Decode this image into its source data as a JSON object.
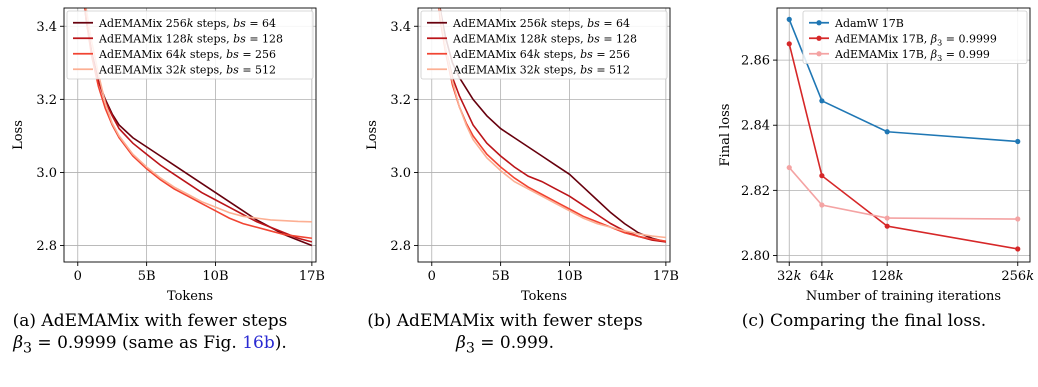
{
  "chart_data": [
    {
      "type": "line",
      "id": "a",
      "title": "",
      "xlabel": "Tokens",
      "ylabel": "Loss",
      "xlim": [
        -1.0,
        17.3
      ],
      "ylim": [
        2.755,
        3.45
      ],
      "x_ticks": [
        0,
        5,
        10,
        17
      ],
      "x_tick_labels": [
        "0",
        "5B",
        "10B",
        "17B"
      ],
      "y_ticks": [
        2.8,
        3.0,
        3.2,
        3.4
      ],
      "y_tick_labels": [
        "2.8",
        "3.0",
        "3.2",
        "3.4"
      ],
      "grid": true,
      "legend_position": "top-right",
      "series": [
        {
          "name": "AdEMAMix 256k steps, bs = 64",
          "color": "#67000d",
          "x": [
            0.3,
            0.6,
            1.0,
            1.5,
            2.0,
            2.5,
            3.0,
            4.0,
            5.0,
            6.0,
            7.0,
            8.0,
            9.0,
            10.0,
            11.0,
            12.0,
            13.0,
            14.0,
            15.0,
            16.0,
            17.0
          ],
          "y": [
            3.55,
            3.42,
            3.33,
            3.25,
            3.2,
            3.16,
            3.13,
            3.095,
            3.07,
            3.045,
            3.02,
            2.995,
            2.97,
            2.945,
            2.92,
            2.895,
            2.87,
            2.85,
            2.83,
            2.815,
            2.8
          ]
        },
        {
          "name": "AdEMAMix 128k steps, bs = 128",
          "color": "#bb1419",
          "x": [
            0.3,
            0.6,
            1.0,
            1.5,
            2.0,
            2.5,
            3.0,
            4.0,
            5.0,
            6.0,
            7.0,
            8.0,
            9.0,
            10.0,
            11.0,
            12.0,
            13.0,
            14.0,
            15.0,
            16.0,
            17.0
          ],
          "y": [
            3.55,
            3.42,
            3.33,
            3.25,
            3.195,
            3.155,
            3.12,
            3.08,
            3.05,
            3.02,
            2.995,
            2.97,
            2.945,
            2.925,
            2.905,
            2.885,
            2.865,
            2.85,
            2.835,
            2.82,
            2.81
          ]
        },
        {
          "name": "AdEMAMix 64k steps, bs = 256",
          "color": "#f14432",
          "x": [
            0.3,
            0.6,
            1.0,
            1.5,
            2.0,
            2.5,
            3.0,
            4.0,
            5.0,
            6.0,
            7.0,
            8.0,
            9.0,
            10.0,
            11.0,
            12.0,
            13.0,
            14.0,
            15.0,
            16.0,
            17.0
          ],
          "y": [
            3.55,
            3.42,
            3.32,
            3.235,
            3.175,
            3.13,
            3.095,
            3.045,
            3.01,
            2.98,
            2.955,
            2.935,
            2.915,
            2.895,
            2.875,
            2.86,
            2.85,
            2.84,
            2.83,
            2.825,
            2.82
          ]
        },
        {
          "name": "AdEMAMix 32k steps, bs = 512",
          "color": "#fcaf93",
          "x": [
            0.3,
            0.6,
            1.0,
            1.5,
            2.0,
            2.5,
            3.0,
            4.0,
            5.0,
            6.0,
            7.0,
            8.0,
            9.0,
            10.0,
            11.0,
            12.0,
            13.0,
            14.0,
            15.0,
            16.0,
            17.0
          ],
          "y": [
            3.55,
            3.45,
            3.36,
            3.27,
            3.19,
            3.135,
            3.1,
            3.05,
            3.015,
            2.985,
            2.96,
            2.94,
            2.92,
            2.905,
            2.89,
            2.88,
            2.875,
            2.87,
            2.868,
            2.866,
            2.865
          ]
        }
      ]
    },
    {
      "type": "line",
      "id": "b",
      "title": "",
      "xlabel": "Tokens",
      "ylabel": "Loss",
      "xlim": [
        -1.0,
        17.3
      ],
      "ylim": [
        2.755,
        3.45
      ],
      "x_ticks": [
        0,
        5,
        10,
        17
      ],
      "x_tick_labels": [
        "0",
        "5B",
        "10B",
        "17B"
      ],
      "y_ticks": [
        2.8,
        3.0,
        3.2,
        3.4
      ],
      "y_tick_labels": [
        "2.8",
        "3.0",
        "3.2",
        "3.4"
      ],
      "grid": true,
      "legend_position": "top-right",
      "series": [
        {
          "name": "AdEMAMix 256k steps, bs = 64",
          "color": "#67000d",
          "x": [
            0.3,
            0.6,
            1.0,
            1.5,
            2.0,
            2.5,
            3.0,
            4.0,
            5.0,
            6.0,
            7.0,
            8.0,
            9.0,
            10.0,
            11.0,
            12.0,
            13.0,
            14.0,
            15.0,
            16.0,
            17.0
          ],
          "y": [
            3.55,
            3.45,
            3.37,
            3.3,
            3.26,
            3.23,
            3.2,
            3.155,
            3.12,
            3.095,
            3.07,
            3.045,
            3.02,
            2.995,
            2.96,
            2.925,
            2.89,
            2.86,
            2.835,
            2.82,
            2.81
          ]
        },
        {
          "name": "AdEMAMix 128k steps, bs = 128",
          "color": "#bb1419",
          "x": [
            0.3,
            0.6,
            1.0,
            1.5,
            2.0,
            2.5,
            3.0,
            4.0,
            5.0,
            6.0,
            7.0,
            8.0,
            9.0,
            10.0,
            11.0,
            12.0,
            13.0,
            14.0,
            15.0,
            16.0,
            17.0
          ],
          "y": [
            3.55,
            3.43,
            3.34,
            3.26,
            3.21,
            3.17,
            3.13,
            3.08,
            3.045,
            3.015,
            2.99,
            2.975,
            2.955,
            2.935,
            2.91,
            2.885,
            2.86,
            2.84,
            2.825,
            2.815,
            2.81
          ]
        },
        {
          "name": "AdEMAMix 64k steps, bs = 256",
          "color": "#f14432",
          "x": [
            0.3,
            0.6,
            1.0,
            1.5,
            2.0,
            2.5,
            3.0,
            4.0,
            5.0,
            6.0,
            7.0,
            8.0,
            9.0,
            10.0,
            11.0,
            12.0,
            13.0,
            14.0,
            15.0,
            16.0,
            17.0
          ],
          "y": [
            3.55,
            3.42,
            3.33,
            3.24,
            3.18,
            3.135,
            3.1,
            3.05,
            3.015,
            2.985,
            2.96,
            2.94,
            2.92,
            2.9,
            2.88,
            2.865,
            2.85,
            2.835,
            2.825,
            2.818,
            2.812
          ]
        },
        {
          "name": "AdEMAMix 32k steps, bs = 512",
          "color": "#fcaf93",
          "x": [
            0.3,
            0.6,
            1.0,
            1.5,
            2.0,
            2.5,
            3.0,
            4.0,
            5.0,
            6.0,
            7.0,
            8.0,
            9.0,
            10.0,
            11.0,
            12.0,
            13.0,
            14.0,
            15.0,
            16.0,
            17.0
          ],
          "y": [
            3.55,
            3.44,
            3.34,
            3.25,
            3.18,
            3.13,
            3.09,
            3.04,
            3.005,
            2.975,
            2.955,
            2.935,
            2.915,
            2.895,
            2.875,
            2.86,
            2.85,
            2.84,
            2.832,
            2.826,
            2.822
          ]
        }
      ]
    },
    {
      "type": "line",
      "id": "c",
      "title": "",
      "xlabel": "Number of training iterations",
      "ylabel": "Final loss",
      "xlim": [
        20,
        268
      ],
      "ylim": [
        2.798,
        2.876
      ],
      "x_ticks": [
        32,
        64,
        128,
        256
      ],
      "x_tick_labels": [
        "32k",
        "64k",
        "128k",
        "256k"
      ],
      "y_ticks": [
        2.8,
        2.82,
        2.84,
        2.86
      ],
      "y_tick_labels": [
        "2.80",
        "2.82",
        "2.84",
        "2.86"
      ],
      "grid": true,
      "legend_position": "top-right",
      "series": [
        {
          "name": "AdamW 17B",
          "color": "#1f77b4",
          "x": [
            32,
            64,
            128,
            256
          ],
          "y": [
            2.8725,
            2.8475,
            2.838,
            2.835
          ]
        },
        {
          "name": "AdEMAMix 17B, β3 = 0.9999",
          "color": "#d62728",
          "x": [
            32,
            64,
            128,
            256
          ],
          "y": [
            2.865,
            2.8245,
            2.809,
            2.802
          ]
        },
        {
          "name": "AdEMAMix 17B, β3 = 0.999",
          "color": "#f4a3a3",
          "x": [
            32,
            64,
            128,
            256
          ],
          "y": [
            2.827,
            2.8155,
            2.8115,
            2.8112
          ]
        }
      ]
    }
  ],
  "captions": {
    "a_line1": "(a) AdEMAMix with fewer steps",
    "a_line2_pre": "β",
    "a_line2_sub": "3",
    "a_line2_mid": " = 0.9999 (same as Fig. ",
    "a_line2_ref": "16b",
    "a_line2_post": ").",
    "b_line1": "(b) AdEMAMix with fewer steps",
    "b_line2_pre": "β",
    "b_line2_sub": "3",
    "b_line2_post": " = 0.999.",
    "c_line1": "(c) Comparing the final loss."
  }
}
